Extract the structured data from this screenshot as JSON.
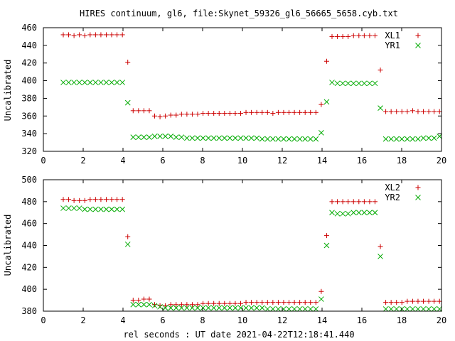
{
  "chart_data": [
    {
      "type": "scatter",
      "title": "HIRES continuum, gl6, file:Skynet_59326_gl6_56665_5658.cyb.txt",
      "xlabel": "",
      "ylabel": "Uncalibrated",
      "xlim": [
        0,
        20
      ],
      "ylim": [
        320,
        460
      ],
      "xticks": [
        "0",
        "2",
        "4",
        "6",
        "8",
        "10",
        "12",
        "14",
        "16",
        "18",
        "20"
      ],
      "yticks": [
        "320",
        "340",
        "360",
        "380",
        "400",
        "420",
        "440",
        "460"
      ],
      "legend": "top-right",
      "series": [
        {
          "name": "XL1",
          "marker": "plus",
          "color": "#cc0000",
          "x": [
            1.0,
            1.27,
            1.54,
            1.81,
            2.08,
            2.35,
            2.62,
            2.89,
            3.16,
            3.43,
            3.7,
            3.97,
            4.24,
            4.51,
            4.78,
            5.05,
            5.32,
            5.59,
            5.86,
            6.13,
            6.4,
            6.67,
            6.94,
            7.21,
            7.48,
            7.75,
            8.02,
            8.29,
            8.56,
            8.83,
            9.1,
            9.37,
            9.64,
            9.91,
            10.18,
            10.45,
            10.72,
            10.99,
            11.26,
            11.53,
            11.8,
            12.07,
            12.34,
            12.61,
            12.88,
            13.15,
            13.42,
            13.69,
            13.96,
            14.23,
            14.5,
            14.77,
            15.04,
            15.31,
            15.58,
            15.85,
            16.12,
            16.39,
            16.66,
            16.93,
            17.2,
            17.47,
            17.74,
            18.01,
            18.28,
            18.55,
            18.82,
            19.09,
            19.36,
            19.63,
            19.9
          ],
          "y": [
            452,
            452,
            451,
            452,
            451,
            452,
            452,
            452,
            452,
            452,
            452,
            452,
            421,
            366,
            366,
            366,
            366,
            360,
            359,
            360,
            361,
            361,
            362,
            362,
            362,
            362,
            363,
            363,
            363,
            363,
            363,
            363,
            363,
            363,
            364,
            364,
            364,
            364,
            364,
            363,
            364,
            364,
            364,
            364,
            364,
            364,
            364,
            364,
            373,
            422,
            450,
            450,
            450,
            450,
            451,
            451,
            451,
            451,
            451,
            412,
            365,
            365,
            365,
            365,
            365,
            366,
            365,
            365,
            365,
            365,
            365
          ]
        },
        {
          "name": "YR1",
          "marker": "cross",
          "color": "#00aa00",
          "x": [
            1.0,
            1.27,
            1.54,
            1.81,
            2.08,
            2.35,
            2.62,
            2.89,
            3.16,
            3.43,
            3.7,
            3.97,
            4.24,
            4.51,
            4.78,
            5.05,
            5.32,
            5.59,
            5.86,
            6.13,
            6.4,
            6.67,
            6.94,
            7.21,
            7.48,
            7.75,
            8.02,
            8.29,
            8.56,
            8.83,
            9.1,
            9.37,
            9.64,
            9.91,
            10.18,
            10.45,
            10.72,
            10.99,
            11.26,
            11.53,
            11.8,
            12.07,
            12.34,
            12.61,
            12.88,
            13.15,
            13.42,
            13.69,
            13.96,
            14.23,
            14.5,
            14.77,
            15.04,
            15.31,
            15.58,
            15.85,
            16.12,
            16.39,
            16.66,
            16.93,
            17.2,
            17.47,
            17.74,
            18.01,
            18.28,
            18.55,
            18.82,
            19.09,
            19.36,
            19.63,
            19.9
          ],
          "y": [
            398,
            398,
            398,
            398,
            398,
            398,
            398,
            398,
            398,
            398,
            398,
            398,
            375,
            336,
            336,
            336,
            336,
            337,
            337,
            337,
            337,
            336,
            336,
            335,
            335,
            335,
            335,
            335,
            335,
            335,
            335,
            335,
            335,
            335,
            335,
            335,
            335,
            334,
            334,
            334,
            334,
            334,
            334,
            334,
            334,
            334,
            334,
            334,
            341,
            376,
            398,
            397,
            397,
            397,
            397,
            397,
            397,
            397,
            397,
            369,
            334,
            334,
            334,
            334,
            334,
            334,
            334,
            335,
            335,
            335,
            337
          ]
        }
      ]
    },
    {
      "type": "scatter",
      "title": "",
      "xlabel": "rel seconds : UT date 2021-04-22T12:18:41.440",
      "ylabel": "Uncalibrated",
      "xlim": [
        0,
        20
      ],
      "ylim": [
        380,
        500
      ],
      "xticks": [
        "0",
        "2",
        "4",
        "6",
        "8",
        "10",
        "12",
        "14",
        "16",
        "18",
        "20"
      ],
      "yticks": [
        "380",
        "400",
        "420",
        "440",
        "460",
        "480",
        "500"
      ],
      "legend": "top-right",
      "series": [
        {
          "name": "XL2",
          "marker": "plus",
          "color": "#cc0000",
          "x": [
            1.0,
            1.27,
            1.54,
            1.81,
            2.08,
            2.35,
            2.62,
            2.89,
            3.16,
            3.43,
            3.7,
            3.97,
            4.24,
            4.51,
            4.78,
            5.05,
            5.32,
            5.59,
            5.86,
            6.13,
            6.4,
            6.67,
            6.94,
            7.21,
            7.48,
            7.75,
            8.02,
            8.29,
            8.56,
            8.83,
            9.1,
            9.37,
            9.64,
            9.91,
            10.18,
            10.45,
            10.72,
            10.99,
            11.26,
            11.53,
            11.8,
            12.07,
            12.34,
            12.61,
            12.88,
            13.15,
            13.42,
            13.69,
            13.96,
            14.23,
            14.5,
            14.77,
            15.04,
            15.31,
            15.58,
            15.85,
            16.12,
            16.39,
            16.66,
            16.93,
            17.2,
            17.47,
            17.74,
            18.01,
            18.28,
            18.55,
            18.82,
            19.09,
            19.36,
            19.63,
            19.9
          ],
          "y": [
            482,
            482,
            481,
            481,
            481,
            482,
            482,
            482,
            482,
            482,
            482,
            482,
            448,
            390,
            390,
            391,
            391,
            386,
            385,
            385,
            386,
            386,
            386,
            386,
            386,
            386,
            387,
            387,
            387,
            387,
            387,
            387,
            387,
            387,
            388,
            388,
            388,
            388,
            388,
            388,
            388,
            388,
            388,
            388,
            388,
            388,
            388,
            388,
            398,
            449,
            480,
            480,
            480,
            480,
            480,
            480,
            480,
            480,
            480,
            439,
            388,
            388,
            388,
            388,
            389,
            389,
            389,
            389,
            389,
            389,
            389
          ]
        },
        {
          "name": "YR2",
          "marker": "cross",
          "color": "#00aa00",
          "x": [
            1.0,
            1.27,
            1.54,
            1.81,
            2.08,
            2.35,
            2.62,
            2.89,
            3.16,
            3.43,
            3.7,
            3.97,
            4.24,
            4.51,
            4.78,
            5.05,
            5.32,
            5.59,
            5.86,
            6.13,
            6.4,
            6.67,
            6.94,
            7.21,
            7.48,
            7.75,
            8.02,
            8.29,
            8.56,
            8.83,
            9.1,
            9.37,
            9.64,
            9.91,
            10.18,
            10.45,
            10.72,
            10.99,
            11.26,
            11.53,
            11.8,
            12.07,
            12.34,
            12.61,
            12.88,
            13.15,
            13.42,
            13.69,
            13.96,
            14.23,
            14.5,
            14.77,
            15.04,
            15.31,
            15.58,
            15.85,
            16.12,
            16.39,
            16.66,
            16.93,
            17.2,
            17.47,
            17.74,
            18.01,
            18.28,
            18.55,
            18.82,
            19.09,
            19.36,
            19.63,
            19.9
          ],
          "y": [
            474,
            474,
            474,
            474,
            473,
            473,
            473,
            473,
            473,
            473,
            473,
            473,
            441,
            386,
            386,
            386,
            386,
            385,
            384,
            383,
            383,
            383,
            383,
            383,
            383,
            383,
            383,
            383,
            383,
            383,
            383,
            383,
            383,
            383,
            383,
            383,
            383,
            383,
            382,
            382,
            382,
            382,
            382,
            382,
            382,
            382,
            382,
            382,
            391,
            440,
            470,
            469,
            469,
            469,
            470,
            470,
            470,
            470,
            470,
            430,
            382,
            382,
            382,
            382,
            382,
            382,
            382,
            382,
            382,
            382,
            382
          ]
        }
      ]
    }
  ]
}
